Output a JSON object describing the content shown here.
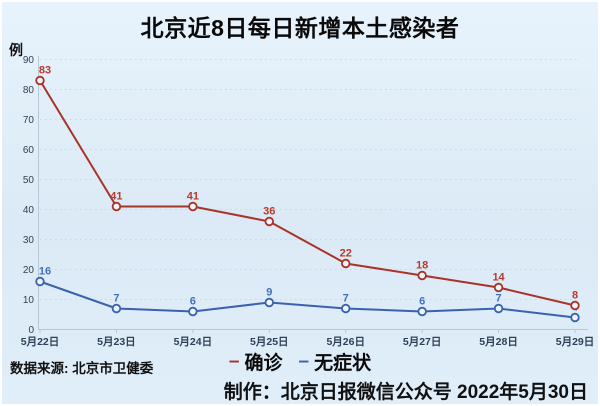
{
  "title": "北京近8日每日新增本土感染者",
  "source": "数据来源: 北京市卫健委",
  "credit": "制作：北京日报微信公众号 2022年5月30日",
  "legend": {
    "dash_glyph": "–"
  },
  "chart_data": {
    "type": "line",
    "title": "北京近8日每日新增本土感染者",
    "ylabel": "例",
    "xlabel": "",
    "ylim": [
      0,
      90
    ],
    "yticks": [
      0,
      10,
      20,
      30,
      40,
      50,
      60,
      70,
      80,
      90
    ],
    "grid": "dotted-horizontal",
    "legend_position": "bottom-center",
    "categories": [
      "5月22日",
      "5月23日",
      "5月24日",
      "5月25日",
      "5月26日",
      "5月27日",
      "5月28日",
      "5月29日"
    ],
    "series": [
      {
        "name": "确诊",
        "color": "#a93328",
        "label_color": "#bb382c",
        "values": [
          83,
          41,
          41,
          36,
          22,
          18,
          14,
          8
        ]
      },
      {
        "name": "无症状",
        "color": "#3a62ae",
        "label_color": "#4470be",
        "values": [
          16,
          7,
          6,
          9,
          7,
          6,
          7,
          4
        ]
      }
    ]
  }
}
